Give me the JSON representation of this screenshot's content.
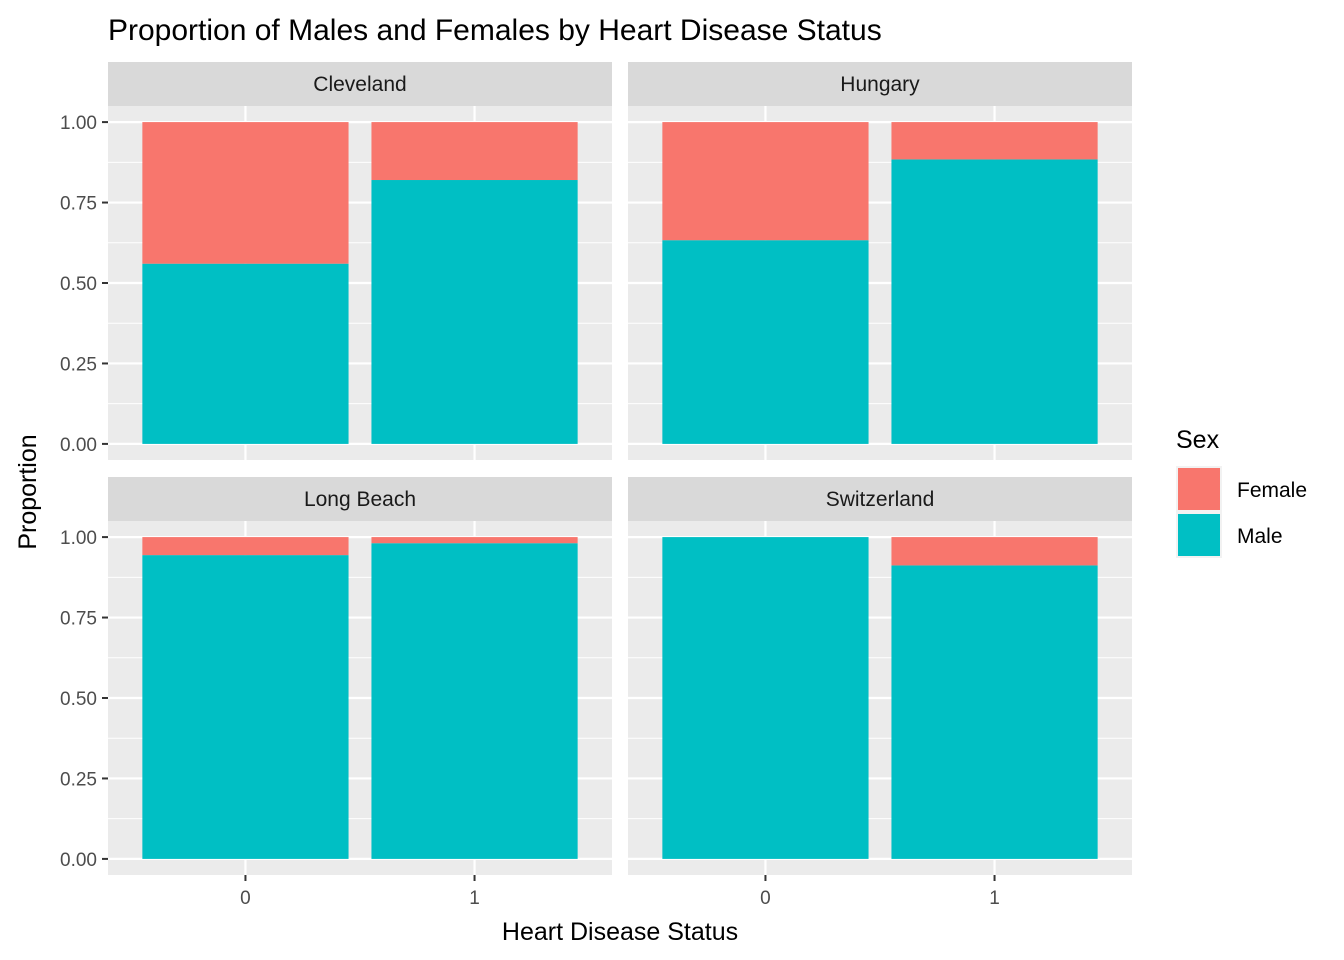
{
  "chart_data": {
    "type": "bar",
    "stacked": true,
    "title": "Proportion of Males and Females by Heart Disease Status",
    "xlabel": "Heart Disease Status",
    "ylabel": "Proportion",
    "ylim": [
      0,
      1
    ],
    "yticks": [
      "0.00",
      "0.25",
      "0.50",
      "0.75",
      "1.00"
    ],
    "categories": [
      "0",
      "1"
    ],
    "legend": {
      "title": "Sex",
      "position": "right",
      "entries": [
        {
          "name": "Female",
          "color": "#F8766D"
        },
        {
          "name": "Male",
          "color": "#00BFC4"
        }
      ]
    },
    "facets": [
      {
        "name": "Cleveland",
        "series": [
          {
            "name": "Male",
            "values": [
              0.56,
              0.82
            ]
          },
          {
            "name": "Female",
            "values": [
              0.44,
              0.18
            ]
          }
        ]
      },
      {
        "name": "Hungary",
        "series": [
          {
            "name": "Male",
            "values": [
              0.633,
              0.884
            ]
          },
          {
            "name": "Female",
            "values": [
              0.367,
              0.116
            ]
          }
        ]
      },
      {
        "name": "Long Beach",
        "series": [
          {
            "name": "Male",
            "values": [
              0.944,
              0.981
            ]
          },
          {
            "name": "Female",
            "values": [
              0.056,
              0.019
            ]
          }
        ]
      },
      {
        "name": "Switzerland",
        "series": [
          {
            "name": "Male",
            "values": [
              1.0,
              0.912
            ]
          },
          {
            "name": "Female",
            "values": [
              0.0,
              0.088
            ]
          }
        ]
      }
    ],
    "grid": true,
    "colors": {
      "panel_background": "#EBEBEB",
      "strip_background": "#D9D9D9",
      "grid_major": "#FFFFFF"
    }
  }
}
